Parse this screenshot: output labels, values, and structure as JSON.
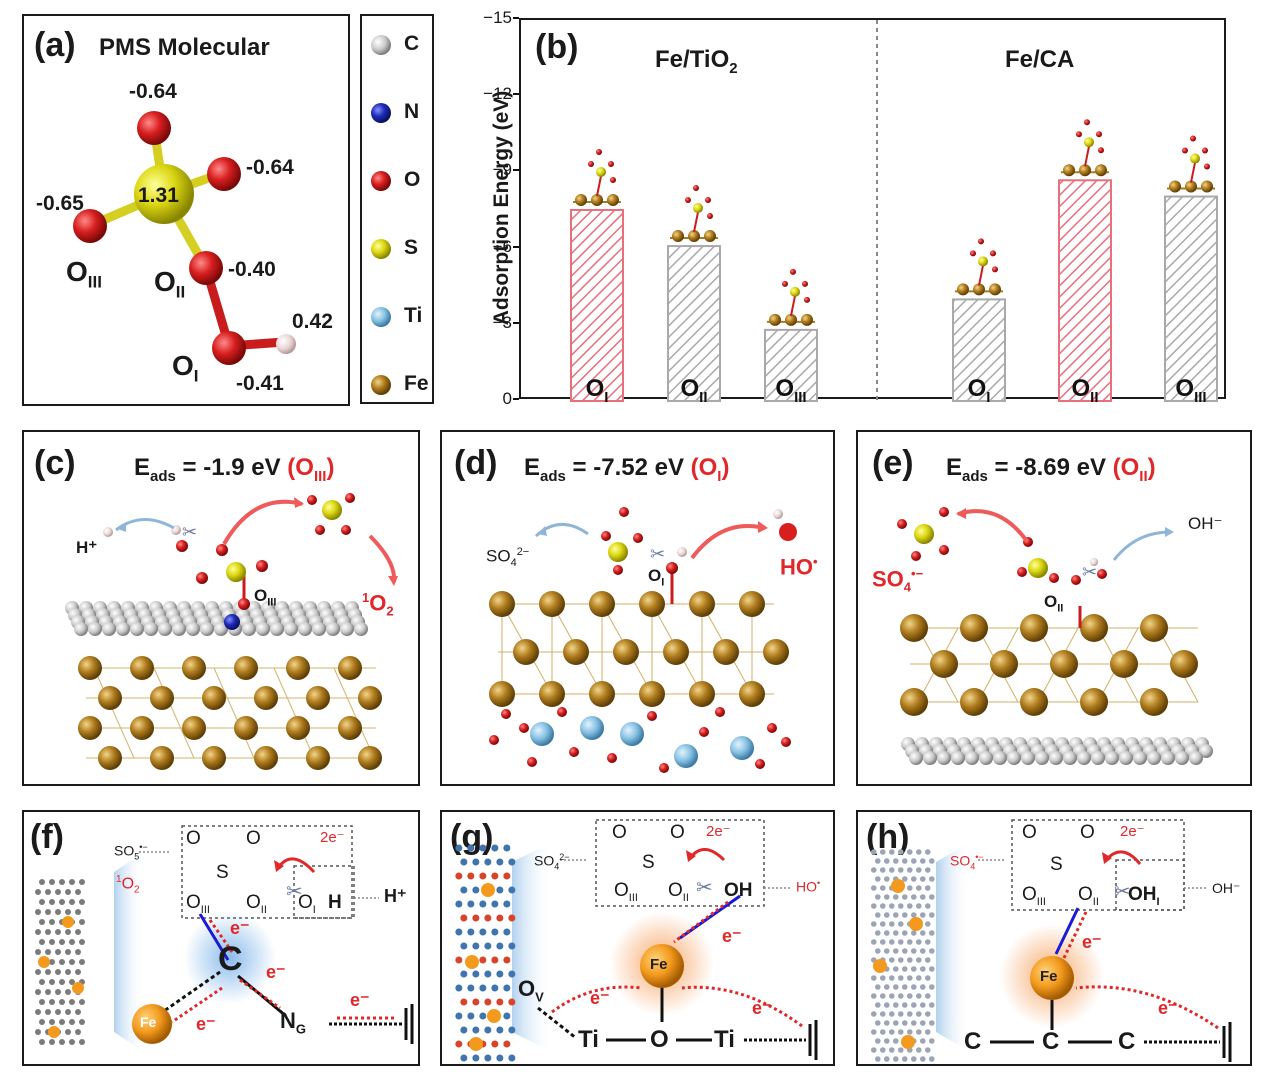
{
  "panel_a": {
    "label": "(a)",
    "title": "PMS Molecular",
    "charges": {
      "top": "-0.64",
      "right": "-0.64",
      "left": "-0.65",
      "center": "1.31",
      "o2": "-0.40",
      "h": "0.42",
      "o1": "-0.41"
    },
    "atoms": {
      "o3_main": "O",
      "o3_sub": "III",
      "o2_main": "O",
      "o2_sub": "II",
      "o1_main": "O",
      "o1_sub": "I"
    }
  },
  "legend": {
    "items": [
      {
        "label": "C",
        "color": "#bdbdbd"
      },
      {
        "label": "N",
        "color": "#1f2fb0"
      },
      {
        "label": "O",
        "color": "#d62020"
      },
      {
        "label": "S",
        "color": "#e3e01e"
      },
      {
        "label": "Ti",
        "color": "#86c0e2"
      },
      {
        "label": "Fe",
        "color": "#a97a22"
      }
    ]
  },
  "panel_b": {
    "label": "(b)",
    "group_left": "Fe/TiO",
    "group_left_sub": "2",
    "group_right": "Fe/CA",
    "chart_data": {
      "type": "bar",
      "ylabel": "Adsorption Energy (eV)",
      "ylim": [
        0,
        -15
      ],
      "yticks": [
        "0",
        "−3",
        "−6",
        "−9",
        "−12",
        "−15"
      ],
      "categories": [
        "OI",
        "OII",
        "OIII",
        "OI",
        "OII",
        "OIII"
      ],
      "bar_labels": [
        {
          "main": "O",
          "sub": "I"
        },
        {
          "main": "O",
          "sub": "II"
        },
        {
          "main": "O",
          "sub": "III"
        },
        {
          "main": "O",
          "sub": "I"
        },
        {
          "main": "O",
          "sub": "II"
        },
        {
          "main": "O",
          "sub": "III"
        }
      ],
      "groups": [
        "Fe/TiO2",
        "Fe/TiO2",
        "Fe/TiO2",
        "Fe/CA",
        "Fe/CA",
        "Fe/CA"
      ],
      "values": [
        -7.52,
        -6.1,
        -2.8,
        -4.0,
        -8.69,
        -8.05
      ],
      "highlight": [
        true,
        false,
        false,
        false,
        true,
        false
      ],
      "colors": {
        "highlight": "#e8707c",
        "normal": "#a9a9a9"
      }
    }
  },
  "panel_c": {
    "label": "(c)",
    "e_main": "E",
    "e_sub": "ads",
    "e_value": " = -1.9 eV ",
    "site_main": "(O",
    "site_sub": "III",
    "site_end": ")",
    "h_plus": "H⁺",
    "o_site_main": "O",
    "o_site_sub": "III",
    "singlet": "O",
    "singlet_pre": "1",
    "singlet_sub": "2"
  },
  "panel_d": {
    "label": "(d)",
    "e_main": "E",
    "e_sub": "ads",
    "e_value": " = -7.52 eV ",
    "site_main": "(O",
    "site_sub": "I",
    "site_end": ")",
    "so4": "SO",
    "so4_sub": "4",
    "so4_sup": "2−",
    "o_site_main": "O",
    "o_site_sub": "I",
    "ho": "HO",
    "ho_sup": "•"
  },
  "panel_e": {
    "label": "(e)",
    "e_main": "E",
    "e_sub": "ads",
    "e_value": " = -8.69 eV ",
    "site_main": "(O",
    "site_sub": "II",
    "site_end": ")",
    "so4": "SO",
    "so4_sub": "4",
    "so4_sup": "•−",
    "oh": "OH⁻",
    "o_site_main": "O",
    "o_site_sub": "II"
  },
  "panel_f": {
    "label": "(f)",
    "so5": "SO",
    "so5_sub": "5",
    "so5_sup": "•−",
    "singlet_pre": "1",
    "singlet": "O",
    "singlet_sub": "2",
    "two_e": "2e⁻",
    "h_plus": "H⁺",
    "o3": "O",
    "o3_sub": "III",
    "o2": "O",
    "o2_sub": "II",
    "o1": "O",
    "o1_sub": "I",
    "h": "H",
    "s": "S",
    "o": "O",
    "c": "C",
    "fe": "Fe",
    "ng": "N",
    "ng_sub": "G",
    "e": "e⁻"
  },
  "panel_g": {
    "label": "(g)",
    "so4": "SO",
    "so4_sub": "4",
    "so4_sup": "2−",
    "ho": "HO",
    "ho_sup": "•",
    "two_e": "2e⁻",
    "o3": "O",
    "o3_sub": "III",
    "o2": "O",
    "o2_sub": "II",
    "oh": "OH",
    "s": "S",
    "o": "O",
    "fe": "Fe",
    "ov": "O",
    "ov_sub": "V",
    "ti": "Ti",
    "e": "e⁻"
  },
  "panel_h": {
    "label": "(h)",
    "so4": "SO",
    "so4_sub": "4",
    "so4_sup": "•−",
    "oh_minus": "OH⁻",
    "two_e": "2e⁻",
    "o3": "O",
    "o3_sub": "III",
    "o2": "O",
    "o2_sub": "II",
    "oh": "OH",
    "oh_sub": "I",
    "s": "S",
    "o": "O",
    "fe": "Fe",
    "c": "C",
    "e": "e⁻"
  },
  "colors": {
    "red": "#e0282a",
    "blue_bond": "#1a1ad6",
    "arrow_blue": "#8fb6d8",
    "arrow_red": "#ef5a5a",
    "fe": "#f39a1e",
    "gold": "#a97a22"
  }
}
